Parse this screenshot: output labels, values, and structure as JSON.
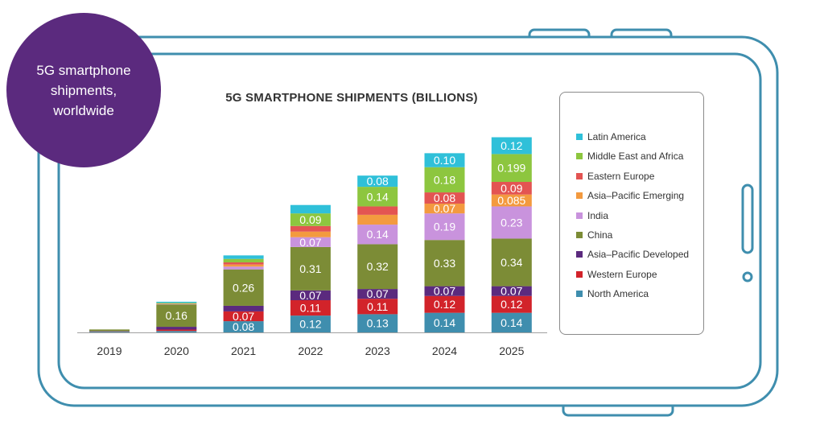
{
  "badge": {
    "text": "5G smartphone shipments, worldwide"
  },
  "chart_data": {
    "type": "bar",
    "stacked": true,
    "title": "5G SMARTPHONE SHIPMENTS (BILLIONS)",
    "xlabel": "",
    "ylabel": "",
    "ylim": [
      0,
      1.7
    ],
    "categories": [
      "2019",
      "2020",
      "2021",
      "2022",
      "2023",
      "2024",
      "2025"
    ],
    "series": [
      {
        "name": "North America",
        "color": "#3f8eae",
        "values": [
          0.005,
          0.01,
          0.08,
          0.12,
          0.13,
          0.14,
          0.14
        ],
        "labels": [
          "",
          "",
          "0.08",
          "0.12",
          "0.13",
          "0.14",
          "0.14"
        ]
      },
      {
        "name": "Western Europe",
        "color": "#d2232a",
        "values": [
          0.002,
          0.01,
          0.07,
          0.11,
          0.11,
          0.12,
          0.12
        ],
        "labels": [
          "",
          "",
          "0.07",
          "0.11",
          "0.11",
          "0.12",
          "0.12"
        ]
      },
      {
        "name": "Asia–Pacific Developed",
        "color": "#5b2a7e",
        "values": [
          0.002,
          0.02,
          0.04,
          0.07,
          0.07,
          0.07,
          0.07
        ],
        "labels": [
          "",
          "",
          "",
          "0.07",
          "0.07",
          "0.07",
          "0.07"
        ]
      },
      {
        "name": "China",
        "color": "#7c8c36",
        "values": [
          0.012,
          0.16,
          0.26,
          0.31,
          0.32,
          0.33,
          0.34
        ],
        "labels": [
          "",
          "0.16",
          "0.26",
          "0.31",
          "0.32",
          "0.33",
          "0.34"
        ]
      },
      {
        "name": "India",
        "color": "#c993dd",
        "values": [
          0,
          0.002,
          0.02,
          0.07,
          0.14,
          0.19,
          0.23
        ],
        "labels": [
          "",
          "",
          "",
          "0.07",
          "0.14",
          "0.19",
          "0.23"
        ]
      },
      {
        "name": "Asia–Pacific Emerging",
        "color": "#f39a3f",
        "values": [
          0,
          0.002,
          0.015,
          0.04,
          0.07,
          0.07,
          0.085
        ],
        "labels": [
          "",
          "",
          "",
          "",
          "",
          "0.07",
          "0.085"
        ]
      },
      {
        "name": "Eastern Europe",
        "color": "#e35452",
        "values": [
          0,
          0.002,
          0.015,
          0.04,
          0.06,
          0.08,
          0.09
        ],
        "labels": [
          "",
          "",
          "",
          "",
          "",
          "0.08",
          "0.09"
        ]
      },
      {
        "name": "Middle East and Africa",
        "color": "#8dc63f",
        "values": [
          0,
          0.005,
          0.025,
          0.09,
          0.14,
          0.18,
          0.199
        ],
        "labels": [
          "",
          "",
          "",
          "0.09",
          "0.14",
          "0.18",
          "0.199"
        ]
      },
      {
        "name": "Latin America",
        "color": "#2fc0d9",
        "values": [
          0,
          0.008,
          0.025,
          0.06,
          0.08,
          0.1,
          0.12
        ],
        "labels": [
          "",
          "",
          "",
          "",
          "0.08",
          "0.10",
          "0.12"
        ]
      }
    ],
    "legend_order": [
      "Latin America",
      "Middle East and Africa",
      "Eastern Europe",
      "Asia–Pacific Emerging",
      "India",
      "China",
      "Asia–Pacific Developed",
      "Western Europe",
      "North America"
    ],
    "legend_position": "right",
    "grid": false
  }
}
